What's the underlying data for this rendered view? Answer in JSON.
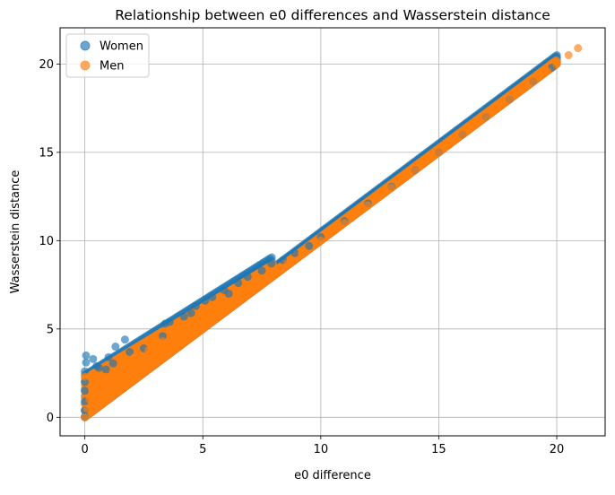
{
  "chart_data": {
    "type": "scatter",
    "title": "Relationship between e0 differences and Wasserstein distance",
    "xlabel": "e0 difference",
    "ylabel": "Wasserstein distance",
    "xlim": [
      -1.05,
      22.05
    ],
    "ylim": [
      -1.05,
      22.05
    ],
    "xticks": [
      0,
      5,
      10,
      15,
      20
    ],
    "yticks": [
      0,
      5,
      10,
      15,
      20
    ],
    "tick_labels": {
      "x": [
        "0",
        "5",
        "10",
        "15",
        "20"
      ],
      "y": [
        "0",
        "5",
        "10",
        "15",
        "20"
      ]
    },
    "grid": true,
    "legend_position": "upper-left",
    "series": [
      {
        "name": "Women",
        "color": "#1f77b4",
        "alpha": 0.65,
        "points": [
          [
            0.0,
            0.05
          ],
          [
            0.0,
            0.4
          ],
          [
            0.0,
            0.9
          ],
          [
            0.0,
            1.5
          ],
          [
            0.0,
            2.0
          ],
          [
            0.0,
            2.6
          ],
          [
            0.05,
            3.1
          ],
          [
            0.05,
            3.5
          ],
          [
            0.35,
            3.3
          ],
          [
            0.5,
            2.9
          ],
          [
            0.6,
            2.8
          ],
          [
            0.9,
            2.7
          ],
          [
            1.0,
            3.4
          ],
          [
            1.2,
            3.05
          ],
          [
            1.3,
            4.0
          ],
          [
            1.7,
            4.4
          ],
          [
            1.9,
            3.7
          ],
          [
            2.5,
            3.9
          ],
          [
            3.3,
            4.6
          ],
          [
            3.4,
            5.3
          ],
          [
            3.6,
            5.4
          ],
          [
            4.2,
            5.7
          ],
          [
            4.5,
            5.9
          ],
          [
            4.7,
            6.3
          ],
          [
            5.1,
            6.6
          ],
          [
            5.4,
            6.8
          ],
          [
            5.9,
            7.2
          ],
          [
            6.1,
            7.0
          ],
          [
            6.5,
            7.6
          ],
          [
            6.9,
            7.95
          ],
          [
            7.5,
            8.3
          ],
          [
            7.9,
            8.7
          ],
          [
            8.4,
            8.9
          ],
          [
            8.9,
            9.3
          ],
          [
            9.5,
            9.7
          ],
          [
            10.0,
            10.2
          ],
          [
            11.0,
            11.1
          ],
          [
            12.0,
            12.1
          ],
          [
            13.0,
            13.05
          ],
          [
            14.0,
            14.0
          ],
          [
            15.0,
            15.0
          ],
          [
            16.0,
            16.0
          ],
          [
            17.0,
            17.0
          ],
          [
            18.0,
            18.0
          ],
          [
            19.0,
            19.0
          ],
          [
            19.8,
            19.8
          ]
        ]
      },
      {
        "name": "Men",
        "color": "#ff7f0e",
        "alpha": 0.65,
        "points": [
          [
            0.0,
            0.0
          ],
          [
            0.1,
            0.5
          ],
          [
            0.2,
            1.0
          ],
          [
            0.3,
            1.6
          ],
          [
            0.0,
            2.3
          ],
          [
            0.5,
            2.0
          ],
          [
            0.9,
            2.3
          ],
          [
            1.2,
            2.6
          ],
          [
            1.6,
            3.0
          ],
          [
            2.1,
            3.4
          ],
          [
            2.7,
            3.8
          ],
          [
            3.3,
            4.3
          ],
          [
            3.8,
            4.7
          ],
          [
            4.4,
            5.1
          ],
          [
            5.0,
            5.4
          ],
          [
            5.6,
            5.9
          ],
          [
            6.2,
            6.4
          ],
          [
            6.8,
            6.9
          ],
          [
            7.5,
            7.6
          ],
          [
            8.0,
            8.2
          ],
          [
            8.6,
            8.7
          ],
          [
            9.2,
            9.3
          ],
          [
            10.0,
            10.0
          ],
          [
            11.0,
            11.0
          ],
          [
            12.0,
            12.0
          ],
          [
            13.0,
            13.0
          ],
          [
            14.0,
            14.0
          ],
          [
            15.0,
            15.0
          ],
          [
            16.0,
            16.0
          ],
          [
            17.0,
            17.0
          ],
          [
            18.0,
            18.0
          ],
          [
            19.0,
            19.0
          ],
          [
            19.6,
            19.6
          ],
          [
            20.0,
            20.0
          ],
          [
            20.5,
            20.5
          ],
          [
            20.9,
            20.9
          ]
        ]
      }
    ]
  }
}
